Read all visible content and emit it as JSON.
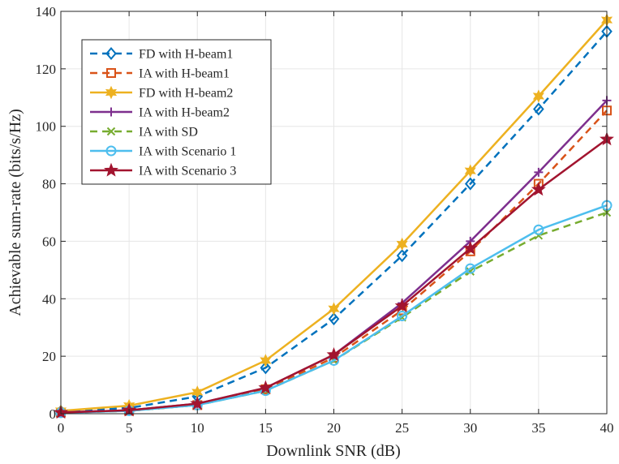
{
  "chart_data": {
    "type": "line",
    "title": "",
    "xlabel": "Downlink SNR (dB)",
    "ylabel": "Achievable sum-rate (bits/s/Hz)",
    "xlim": [
      0,
      40
    ],
    "ylim": [
      0,
      140
    ],
    "x_ticks": [
      0,
      5,
      10,
      15,
      20,
      25,
      30,
      35,
      40
    ],
    "y_ticks": [
      0,
      20,
      40,
      60,
      80,
      100,
      120,
      140
    ],
    "grid": true,
    "legend_position": "top-left",
    "x": [
      0,
      5,
      10,
      15,
      20,
      25,
      30,
      35,
      40
    ],
    "series": [
      {
        "name": "FD with H-beam1",
        "color": "#0072BD",
        "dash": "dashed",
        "marker": "diamond",
        "values": [
          0.8,
          2.0,
          6.0,
          16.0,
          33.0,
          55.0,
          80.0,
          106.0,
          133.0
        ]
      },
      {
        "name": "IA with H-beam1",
        "color": "#D95319",
        "dash": "dashed",
        "marker": "square",
        "values": [
          0.4,
          1.0,
          3.0,
          8.5,
          19.5,
          36.0,
          56.5,
          80.0,
          105.5
        ]
      },
      {
        "name": "FD with H-beam2",
        "color": "#EDB120",
        "dash": "solid",
        "marker": "hexagram",
        "values": [
          1.0,
          2.8,
          7.5,
          18.5,
          36.5,
          59.0,
          84.5,
          110.5,
          137.0
        ]
      },
      {
        "name": "IA with H-beam2",
        "color": "#7E2F8E",
        "dash": "solid",
        "marker": "plus",
        "values": [
          0.5,
          1.2,
          3.5,
          9.0,
          20.5,
          38.5,
          60.0,
          84.0,
          109.0
        ]
      },
      {
        "name": "IA with SD",
        "color": "#77AC30",
        "dash": "dashed",
        "marker": "x",
        "values": [
          0.3,
          1.0,
          3.0,
          8.0,
          18.5,
          33.5,
          49.5,
          62.0,
          70.0
        ]
      },
      {
        "name": "IA with Scenario 1",
        "color": "#4DBEEE",
        "dash": "solid",
        "marker": "circle",
        "values": [
          0.3,
          1.0,
          3.0,
          8.0,
          18.5,
          34.0,
          50.5,
          64.0,
          72.5
        ]
      },
      {
        "name": "IA with Scenario 3",
        "color": "#A2142F",
        "dash": "solid",
        "marker": "pentagram",
        "values": [
          0.4,
          1.2,
          3.5,
          9.0,
          20.5,
          37.5,
          57.5,
          78.0,
          95.5
        ]
      }
    ]
  }
}
